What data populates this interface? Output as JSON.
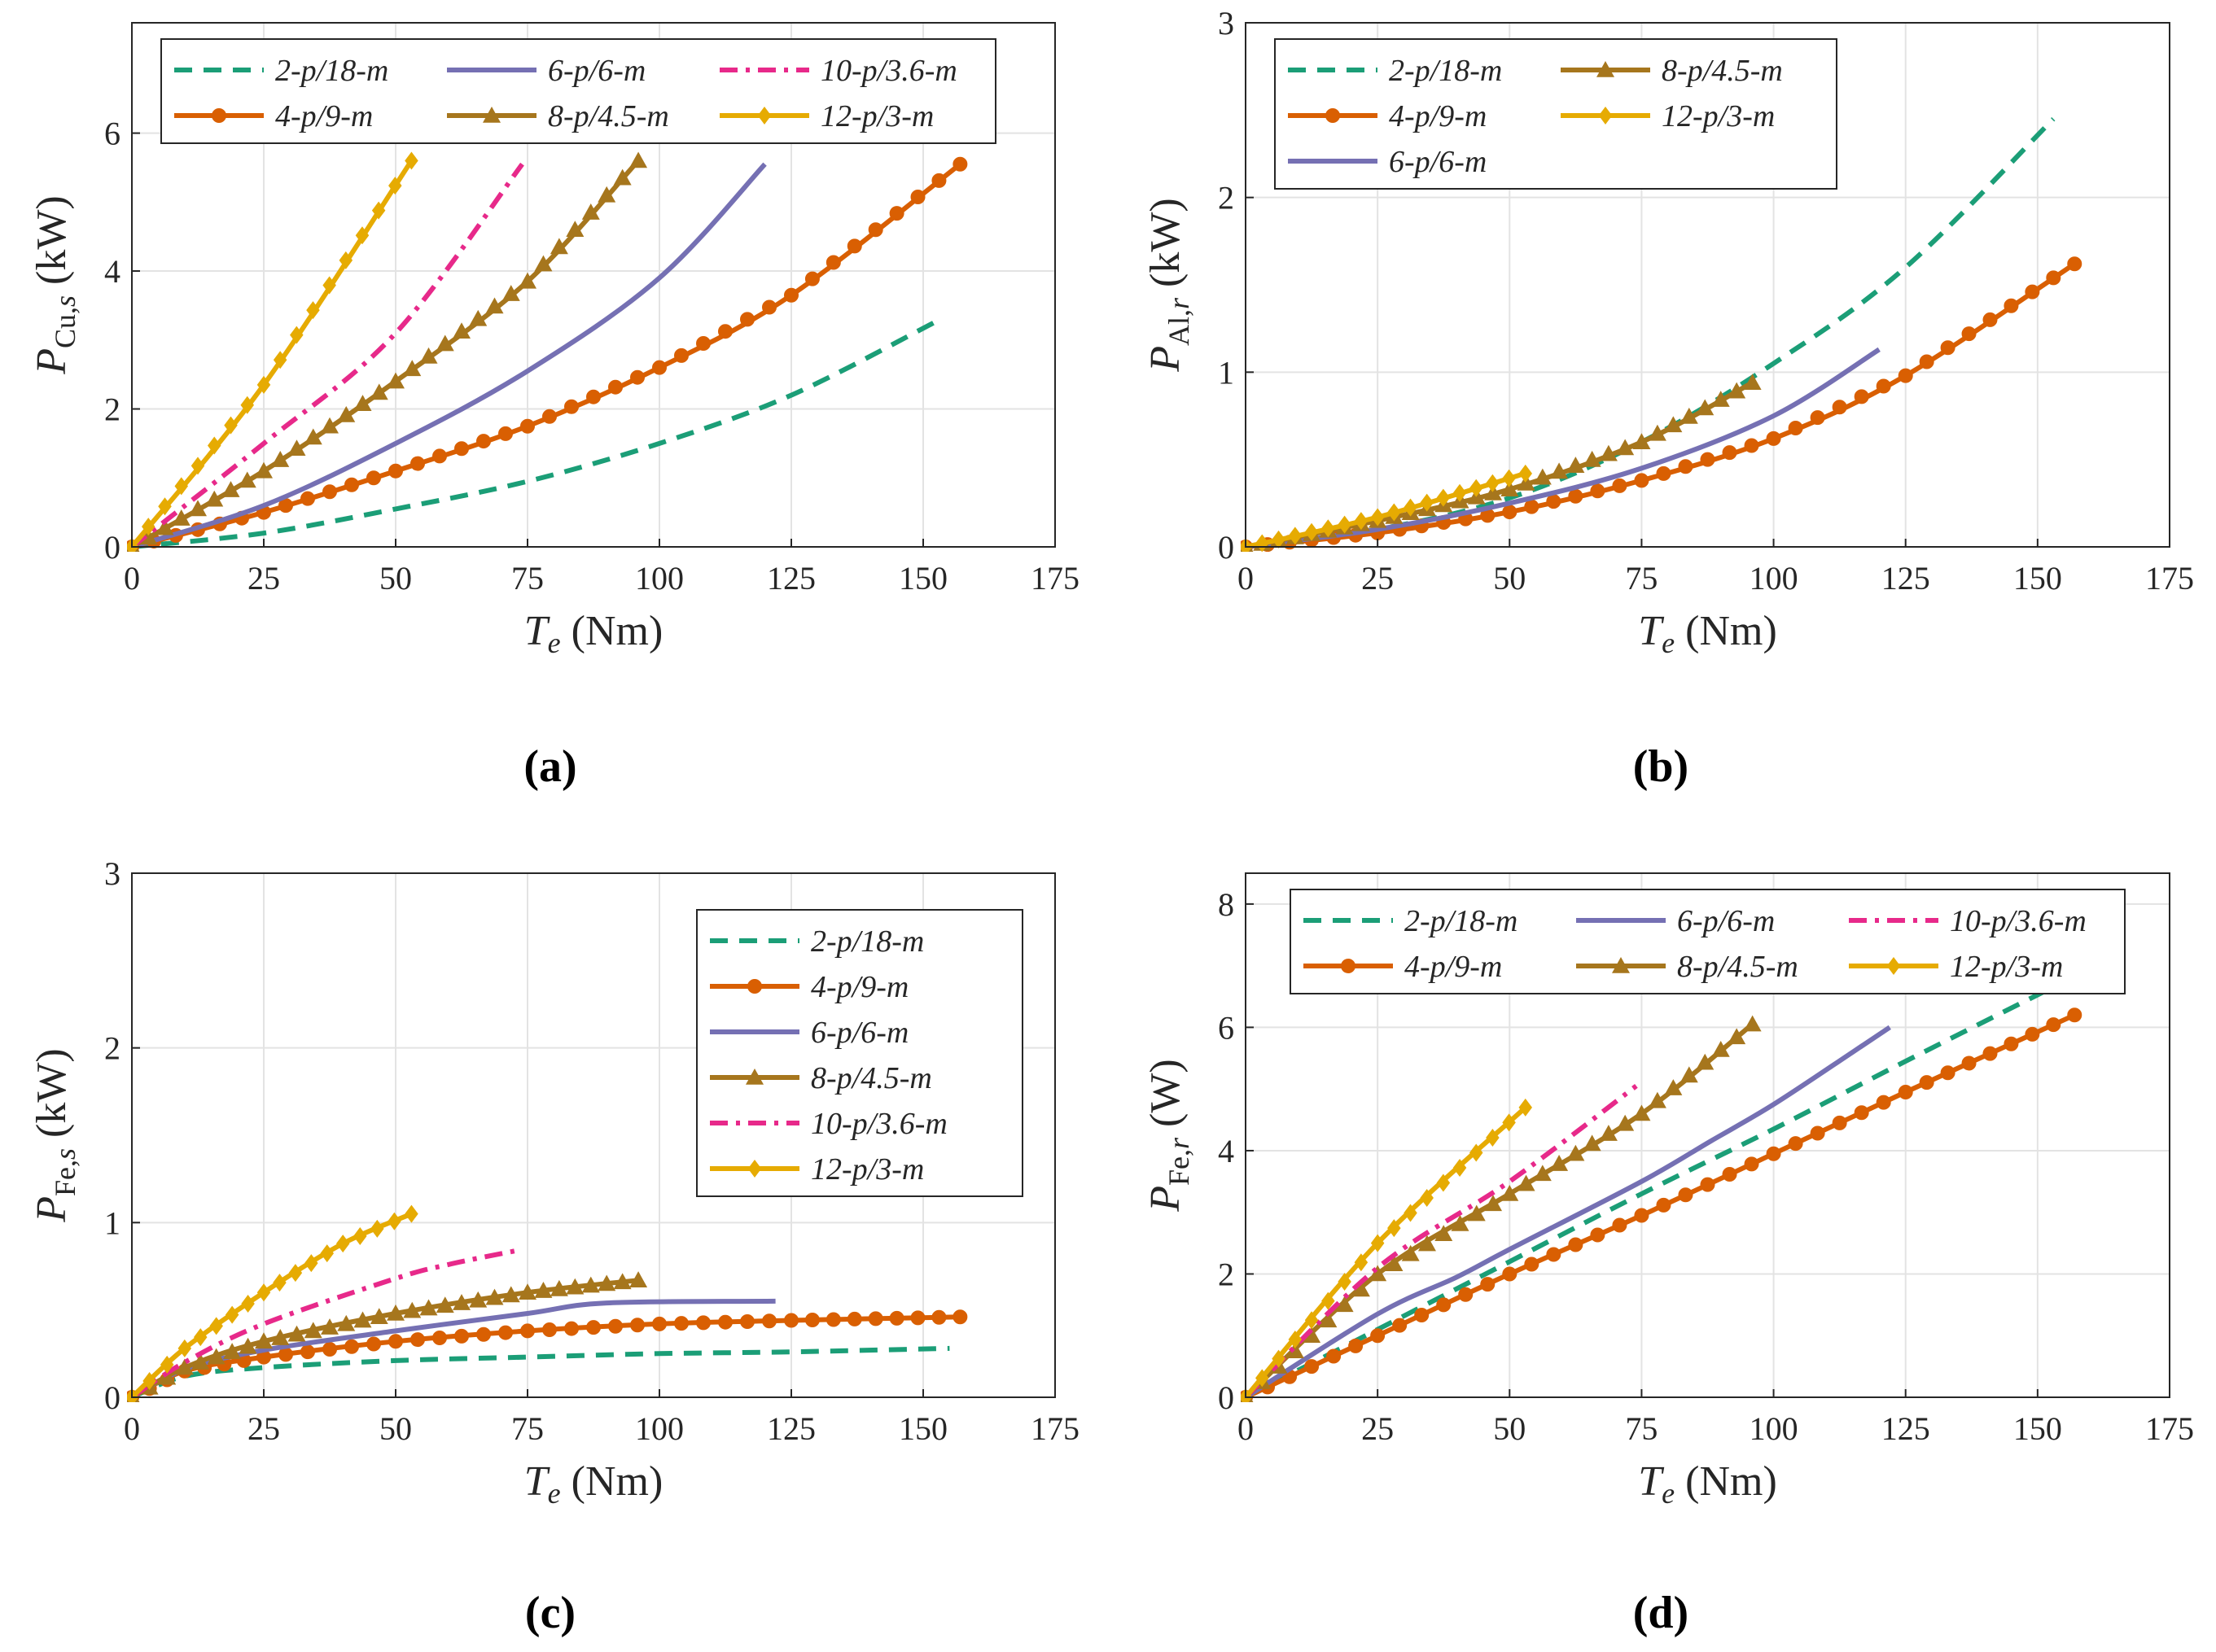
{
  "colors": {
    "2-p/18-m": "#1b9e77",
    "4-p/9-m": "#d95f02",
    "6-p/6-m": "#7570b3",
    "8-p/4.5-m": "#a6761d",
    "10-p/3.6-m": "#e7298a",
    "12-p/3-m": "#e6ab02"
  },
  "chart_data": [
    {
      "id": "a",
      "type": "line",
      "panel_label": "(a)",
      "xlabel_main": "T",
      "xlabel_sub": "e",
      "xlabel_unit": " (Nm)",
      "ylabel_main": "P",
      "ylabel_sub": "Cu,",
      "ylabel_sub_italic": "s",
      "ylabel_unit": " (kW)",
      "xlim": [
        0,
        175
      ],
      "ylim": [
        0,
        7.6
      ],
      "xticks": [
        0,
        25,
        50,
        75,
        100,
        125,
        150,
        175
      ],
      "yticks": [
        0,
        2,
        4,
        6
      ],
      "legend_position": "top-left",
      "legend_columns": 3,
      "series": [
        {
          "name": "2-p/18-m",
          "style": "dashed",
          "marker": "none",
          "x": [
            0,
            25,
            50,
            75,
            100,
            125,
            152
          ],
          "y": [
            0,
            0.2,
            0.55,
            0.95,
            1.5,
            2.2,
            3.25
          ]
        },
        {
          "name": "4-p/9-m",
          "style": "solid",
          "marker": "circle",
          "x": [
            0,
            25,
            50,
            75,
            100,
            125,
            157
          ],
          "y": [
            0,
            0.5,
            1.1,
            1.75,
            2.6,
            3.65,
            5.55
          ]
        },
        {
          "name": "6-p/6-m",
          "style": "solid",
          "marker": "none",
          "x": [
            0,
            25,
            50,
            75,
            100,
            120
          ],
          "y": [
            0,
            0.6,
            1.5,
            2.55,
            3.9,
            5.55
          ]
        },
        {
          "name": "8-p/4.5-m",
          "style": "solid",
          "marker": "triangle",
          "x": [
            0,
            25,
            50,
            75,
            96
          ],
          "y": [
            0,
            1.1,
            2.4,
            3.85,
            5.6
          ]
        },
        {
          "name": "10-p/3.6-m",
          "style": "dashdot",
          "marker": "none",
          "x": [
            0,
            25,
            50,
            74
          ],
          "y": [
            0,
            1.5,
            3.1,
            5.55
          ]
        },
        {
          "name": "12-p/3-m",
          "style": "solid",
          "marker": "diamond",
          "x": [
            0,
            25,
            53
          ],
          "y": [
            0,
            2.35,
            5.6
          ]
        }
      ]
    },
    {
      "id": "b",
      "type": "line",
      "panel_label": "(b)",
      "xlabel_main": "T",
      "xlabel_sub": "e",
      "xlabel_unit": " (Nm)",
      "ylabel_main": "P",
      "ylabel_sub": "Al,",
      "ylabel_sub_italic": "r",
      "ylabel_unit": " (kW)",
      "xlim": [
        0,
        175
      ],
      "ylim": [
        0,
        3
      ],
      "xticks": [
        0,
        25,
        50,
        75,
        100,
        125,
        150,
        175
      ],
      "yticks": [
        0,
        1,
        2,
        3
      ],
      "legend_position": "top-left",
      "legend_columns": 2,
      "series": [
        {
          "name": "2-p/18-m",
          "style": "dashed",
          "marker": "none",
          "x": [
            0,
            25,
            50,
            75,
            100,
            125,
            153
          ],
          "y": [
            0,
            0.1,
            0.28,
            0.6,
            1.05,
            1.6,
            2.45
          ]
        },
        {
          "name": "4-p/9-m",
          "style": "solid",
          "marker": "circle",
          "x": [
            0,
            25,
            50,
            75,
            100,
            125,
            157
          ],
          "y": [
            0,
            0.08,
            0.2,
            0.38,
            0.62,
            0.98,
            1.62
          ]
        },
        {
          "name": "6-p/6-m",
          "style": "solid",
          "marker": "none",
          "x": [
            0,
            25,
            50,
            75,
            100,
            120
          ],
          "y": [
            0,
            0.1,
            0.25,
            0.45,
            0.75,
            1.13
          ]
        },
        {
          "name": "8-p/4.5-m",
          "style": "solid",
          "marker": "triangle",
          "x": [
            0,
            25,
            50,
            75,
            96
          ],
          "y": [
            0,
            0.15,
            0.33,
            0.6,
            0.94
          ]
        },
        {
          "name": "12-p/3-m",
          "style": "solid",
          "marker": "diamond",
          "x": [
            0,
            25,
            53
          ],
          "y": [
            0,
            0.17,
            0.42
          ]
        }
      ]
    },
    {
      "id": "c",
      "type": "line",
      "panel_label": "(c)",
      "xlabel_main": "T",
      "xlabel_sub": "e",
      "xlabel_unit": " (Nm)",
      "ylabel_main": "P",
      "ylabel_sub": "Fe,",
      "ylabel_sub_italic": "s",
      "ylabel_unit": " (kW)",
      "xlim": [
        0,
        175
      ],
      "ylim": [
        0,
        3
      ],
      "xticks": [
        0,
        25,
        50,
        75,
        100,
        125,
        150,
        175
      ],
      "yticks": [
        0,
        1,
        2,
        3
      ],
      "legend_position": "top-right",
      "legend_columns": 1,
      "series": [
        {
          "name": "2-p/18-m",
          "style": "dashed",
          "marker": "none",
          "x": [
            0,
            10,
            25,
            50,
            75,
            100,
            125,
            155
          ],
          "y": [
            0,
            0.12,
            0.17,
            0.21,
            0.23,
            0.25,
            0.26,
            0.28
          ]
        },
        {
          "name": "4-p/9-m",
          "style": "solid",
          "marker": "circle",
          "x": [
            0,
            10,
            25,
            50,
            75,
            100,
            125,
            157
          ],
          "y": [
            0,
            0.15,
            0.23,
            0.32,
            0.38,
            0.42,
            0.44,
            0.46
          ]
        },
        {
          "name": "6-p/6-m",
          "style": "solid",
          "marker": "none",
          "x": [
            0,
            10,
            25,
            50,
            75,
            90,
            122
          ],
          "y": [
            0,
            0.16,
            0.27,
            0.38,
            0.48,
            0.54,
            0.55
          ]
        },
        {
          "name": "8-p/4.5-m",
          "style": "solid",
          "marker": "triangle",
          "x": [
            0,
            10,
            25,
            50,
            75,
            96
          ],
          "y": [
            0,
            0.17,
            0.32,
            0.48,
            0.6,
            0.67
          ]
        },
        {
          "name": "10-p/3.6-m",
          "style": "dashdot",
          "marker": "none",
          "x": [
            0,
            10,
            25,
            50,
            60,
            73
          ],
          "y": [
            0,
            0.2,
            0.42,
            0.68,
            0.76,
            0.84
          ]
        },
        {
          "name": "12-p/3-m",
          "style": "solid",
          "marker": "diamond",
          "x": [
            0,
            10,
            25,
            40,
            53
          ],
          "y": [
            0,
            0.28,
            0.6,
            0.88,
            1.05
          ]
        }
      ]
    },
    {
      "id": "d",
      "type": "line",
      "panel_label": "(d)",
      "xlabel_main": "T",
      "xlabel_sub": "e",
      "xlabel_unit": " (Nm)",
      "ylabel_main": "P",
      "ylabel_sub": "Fe,",
      "ylabel_sub_italic": "r",
      "ylabel_unit": " (W)",
      "xlim": [
        0,
        175
      ],
      "ylim": [
        0,
        8.5
      ],
      "xticks": [
        0,
        25,
        50,
        75,
        100,
        125,
        150,
        175
      ],
      "yticks": [
        0,
        2,
        4,
        6,
        8
      ],
      "legend_position": "top",
      "legend_columns": 3,
      "series": [
        {
          "name": "2-p/18-m",
          "style": "dashed",
          "marker": "none",
          "x": [
            0,
            25,
            50,
            75,
            100,
            125,
            154
          ],
          "y": [
            0,
            1.1,
            2.2,
            3.3,
            4.35,
            5.45,
            6.7
          ]
        },
        {
          "name": "4-p/9-m",
          "style": "solid",
          "marker": "circle",
          "x": [
            0,
            25,
            50,
            75,
            100,
            125,
            157
          ],
          "y": [
            0,
            1.0,
            2.0,
            2.95,
            3.95,
            4.95,
            6.2
          ]
        },
        {
          "name": "6-p/6-m",
          "style": "solid",
          "marker": "none",
          "x": [
            0,
            25,
            40,
            50,
            75,
            88,
            100,
            115,
            122
          ],
          "y": [
            0,
            1.35,
            1.95,
            2.4,
            3.5,
            4.15,
            4.75,
            5.6,
            6.0
          ]
        },
        {
          "name": "8-p/4.5-m",
          "style": "solid",
          "marker": "triangle",
          "x": [
            0,
            25,
            50,
            75,
            96
          ],
          "y": [
            0,
            2.0,
            3.3,
            4.6,
            6.05
          ]
        },
        {
          "name": "10-p/3.6-m",
          "style": "dashdot",
          "marker": "none",
          "x": [
            0,
            25,
            50,
            74
          ],
          "y": [
            0,
            2.1,
            3.5,
            5.05
          ]
        },
        {
          "name": "12-p/3-m",
          "style": "solid",
          "marker": "diamond",
          "x": [
            0,
            25,
            53
          ],
          "y": [
            0,
            2.5,
            4.7
          ]
        }
      ]
    }
  ]
}
